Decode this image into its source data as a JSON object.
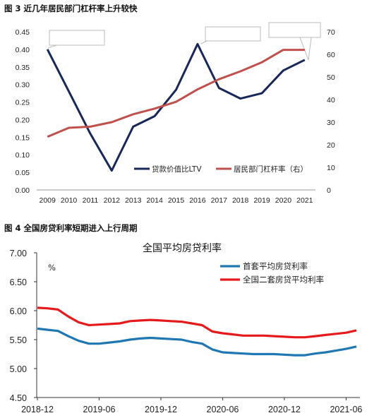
{
  "figures": {
    "fig3_title": "图 3 近几年居民部门杠杆率上升较快",
    "fig4_title": "图 4 全国房贷利率短期进入上行周期"
  },
  "chart_data": [
    {
      "type": "line",
      "x": [
        "2009",
        "2010",
        "2011",
        "2012",
        "2013",
        "2014",
        "2015",
        "2016",
        "2017",
        "2018",
        "2019",
        "2020",
        "2021"
      ],
      "series": [
        {
          "name": "贷款价值比LTV",
          "axis": "left",
          "color": "#17275a",
          "values": [
            0.4,
            0.28,
            0.16,
            0.055,
            0.18,
            0.21,
            0.285,
            0.415,
            0.29,
            0.26,
            0.275,
            0.34,
            0.37
          ]
        },
        {
          "name": "居民部门杠杆率（右）",
          "axis": "right",
          "color": "#c0504d",
          "values": [
            23.5,
            27.5,
            28,
            30,
            33.5,
            36,
            39,
            44.5,
            49,
            52.5,
            56.5,
            62,
            62
          ]
        }
      ],
      "y_left": {
        "lim": [
          0,
          0.45
        ],
        "ticks": [
          "0.00",
          "0.05",
          "0.10",
          "0.15",
          "0.20",
          "0.25",
          "0.30",
          "0.35",
          "0.40",
          "0.45"
        ]
      },
      "y_right": {
        "lim": [
          0,
          70
        ],
        "ticks": [
          "0",
          "10",
          "20",
          "30",
          "40",
          "50",
          "60",
          "70"
        ]
      },
      "legend_position": "lower-right",
      "grid": false
    },
    {
      "type": "line",
      "title": "全国平均房贷利率",
      "y_unit": "%",
      "x_ticks": [
        "2018-12",
        "2019-06",
        "2019-12",
        "2020-06",
        "2020-12",
        "2021-06"
      ],
      "series": [
        {
          "name": "首套平均房贷利率",
          "color": "#1f77b4",
          "values": [
            5.69,
            5.67,
            5.65,
            5.56,
            5.48,
            5.43,
            5.43,
            5.45,
            5.47,
            5.5,
            5.52,
            5.53,
            5.52,
            5.51,
            5.5,
            5.46,
            5.43,
            5.33,
            5.28,
            5.27,
            5.26,
            5.25,
            5.25,
            5.25,
            5.24,
            5.23,
            5.23,
            5.26,
            5.28,
            5.31,
            5.34,
            5.38
          ]
        },
        {
          "name": "全国二套房贷平均利率",
          "color": "#e41a1c",
          "values": [
            6.05,
            6.04,
            6.02,
            5.9,
            5.8,
            5.75,
            5.76,
            5.77,
            5.78,
            5.82,
            5.83,
            5.84,
            5.83,
            5.82,
            5.81,
            5.78,
            5.75,
            5.64,
            5.61,
            5.59,
            5.57,
            5.57,
            5.57,
            5.56,
            5.55,
            5.54,
            5.54,
            5.56,
            5.58,
            5.6,
            5.62,
            5.66
          ]
        }
      ],
      "ylim": [
        4.5,
        7.0
      ],
      "y_ticks": [
        "4.50",
        "5.00",
        "5.50",
        "6.00",
        "6.50",
        "7.00"
      ],
      "legend_position": "top-right",
      "grid": false
    }
  ]
}
